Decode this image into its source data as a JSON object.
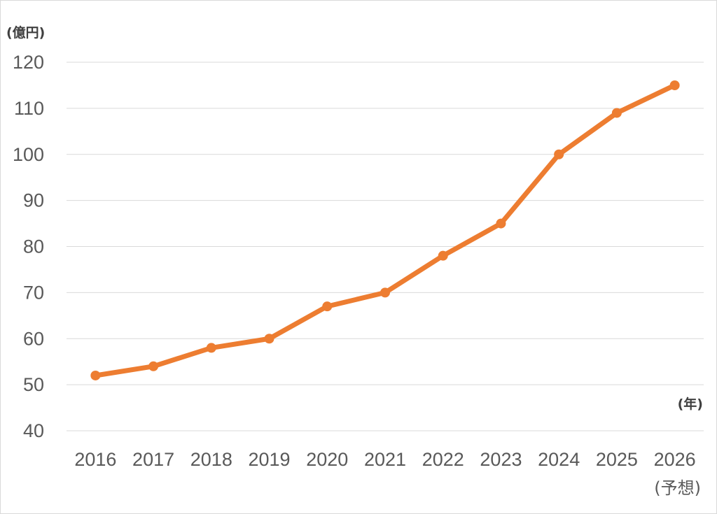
{
  "chart_data": {
    "type": "line",
    "title": "",
    "ylabel": "(億円)",
    "xlabel": "(年)",
    "ylim": [
      40,
      120
    ],
    "yticks": [
      40,
      50,
      60,
      70,
      80,
      90,
      100,
      110,
      120
    ],
    "grid": true,
    "categories": [
      "2016",
      "2017",
      "2018",
      "2019",
      "2020",
      "2021",
      "2022",
      "2023",
      "2024",
      "2025",
      "2026"
    ],
    "category_note": "(予想)",
    "series": [
      {
        "values": [
          52,
          54,
          58,
          60,
          67,
          70,
          78,
          85,
          100,
          109,
          115
        ],
        "color": "#ED7D31"
      }
    ]
  }
}
